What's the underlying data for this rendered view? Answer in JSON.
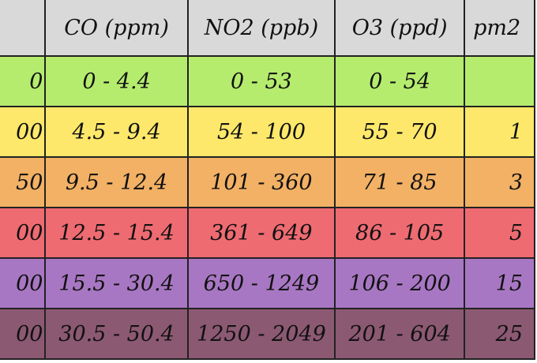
{
  "table": {
    "header": [
      null,
      "CO (ppm)",
      "NO2 (ppb)",
      "O3 (ppd)",
      "pm2"
    ],
    "rows": [
      [
        "0",
        "0 - 4.4",
        "0 - 53",
        "0 - 54",
        null
      ],
      [
        "00",
        "4.5 - 9.4",
        "54 - 100",
        "55 - 70",
        "1"
      ],
      [
        "50",
        "9.5 - 12.4",
        "101 - 360",
        "71 - 85",
        "3"
      ],
      [
        "00",
        "12.5 - 15.4",
        "361 - 649",
        "86 - 105",
        "5"
      ],
      [
        "00",
        "15.5 - 30.4",
        "650 - 1249",
        "106 - 200",
        "15"
      ],
      [
        "00",
        "30.5 - 50.4",
        "1250 - 2049",
        "201 - 604",
        "25"
      ]
    ]
  }
}
